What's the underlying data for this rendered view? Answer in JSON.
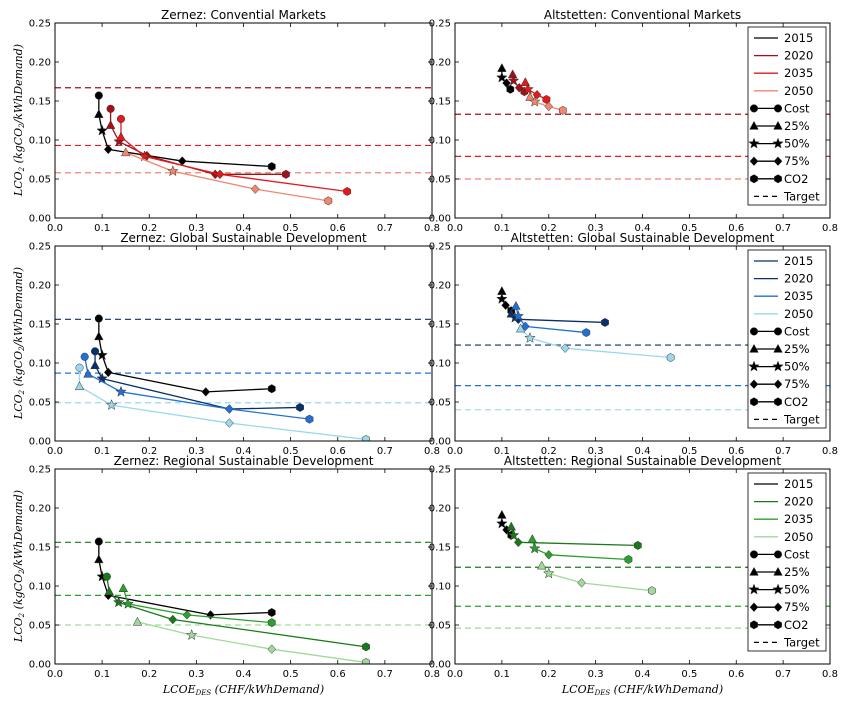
{
  "chart_data": [
    {
      "type": "line",
      "title": "Zernez: Convential Markets",
      "xlim": [
        0,
        0.8
      ],
      "ylim": [
        0,
        0.25
      ],
      "xticks": [
        "0.0",
        "0.1",
        "0.2",
        "0.3",
        "0.4",
        "0.5",
        "0.6",
        "0.7",
        "0.8"
      ],
      "yticks": [
        "0.00",
        "0.05",
        "0.10",
        "0.15",
        "0.20",
        "0.25"
      ],
      "legend": null,
      "series": [
        {
          "name": "2015",
          "color": "#000000",
          "points": [
            [
              0.093,
              0.157
            ],
            [
              0.093,
              0.133
            ],
            [
              0.1,
              0.112
            ],
            [
              0.113,
              0.088
            ],
            [
              0.27,
              0.073
            ],
            [
              0.46,
              0.066
            ]
          ]
        },
        {
          "name": "2020",
          "color": "#a50f15",
          "points": [
            [
              0.118,
              0.14
            ],
            [
              0.118,
              0.119
            ],
            [
              0.136,
              0.098
            ],
            [
              0.195,
              0.08
            ],
            [
              0.34,
              0.056
            ],
            [
              0.49,
              0.056
            ]
          ]
        },
        {
          "name": "2035",
          "color": "#e31a1c",
          "points": [
            [
              0.14,
              0.127
            ],
            [
              0.14,
              0.104
            ],
            [
              0.19,
              0.079
            ],
            [
              0.35,
              0.056
            ],
            [
              0.62,
              0.034
            ]
          ]
        },
        {
          "name": "2050",
          "color": "#f08870",
          "points": [
            [
              0.15,
              0.084
            ],
            [
              0.25,
              0.06
            ],
            [
              0.425,
              0.037
            ],
            [
              0.58,
              0.022
            ]
          ]
        }
      ],
      "targets": [
        {
          "y": 0.167,
          "color": "#a50f15"
        },
        {
          "y": 0.093,
          "color": "#e31a1c"
        },
        {
          "y": 0.058,
          "color": "#f08870"
        }
      ]
    },
    {
      "type": "line",
      "title": "Altstetten: Conventional Markets",
      "xlim": [
        0,
        0.8
      ],
      "ylim": [
        0,
        0.25
      ],
      "xticks": [
        "0.0",
        "0.1",
        "0.2",
        "0.3",
        "0.4",
        "0.5",
        "0.6",
        "0.7",
        "0.8"
      ],
      "yticks": [
        "0.00",
        "0.05",
        "0.10",
        "0.15",
        "0.20",
        "0.25"
      ],
      "legend": {
        "placement": "top-right",
        "entries": [
          "2015",
          "2020",
          "2035",
          "2050",
          "Cost",
          "25%",
          "50%",
          "75%",
          "CO2",
          "Target"
        ],
        "colors": [
          "#000000",
          "#a50f15",
          "#e31a1c",
          "#f08870"
        ]
      },
      "series": [
        {
          "name": "2015",
          "color": "#000000",
          "points": [
            [
              0.1,
              0.192
            ],
            [
              0.1,
              0.18
            ],
            [
              0.11,
              0.173
            ],
            [
              0.118,
              0.165
            ]
          ]
        },
        {
          "name": "2020",
          "color": "#a50f15",
          "points": [
            [
              0.123,
              0.184
            ],
            [
              0.125,
              0.176
            ],
            [
              0.137,
              0.167
            ],
            [
              0.148,
              0.162
            ]
          ]
        },
        {
          "name": "2035",
          "color": "#e31a1c",
          "points": [
            [
              0.15,
              0.174
            ],
            [
              0.156,
              0.165
            ],
            [
              0.175,
              0.158
            ],
            [
              0.195,
              0.152
            ]
          ]
        },
        {
          "name": "2050",
          "color": "#f08870",
          "points": [
            [
              0.16,
              0.155
            ],
            [
              0.17,
              0.149
            ],
            [
              0.2,
              0.143
            ],
            [
              0.23,
              0.138
            ]
          ]
        }
      ],
      "targets": [
        {
          "y": 0.133,
          "color": "#a50f15"
        },
        {
          "y": 0.079,
          "color": "#e31a1c"
        },
        {
          "y": 0.05,
          "color": "#f08870"
        }
      ]
    },
    {
      "type": "line",
      "title": "Zernez: Global Sustainable Development",
      "xlim": [
        0,
        0.8
      ],
      "ylim": [
        0,
        0.25
      ],
      "xticks": [
        "0.0",
        "0.1",
        "0.2",
        "0.3",
        "0.4",
        "0.5",
        "0.6",
        "0.7",
        "0.8"
      ],
      "yticks": [
        "0.00",
        "0.05",
        "0.10",
        "0.15",
        "0.20",
        "0.25"
      ],
      "legend": null,
      "series": [
        {
          "name": "2015",
          "color": "#000000",
          "points": [
            [
              0.093,
              0.157
            ],
            [
              0.093,
              0.134
            ],
            [
              0.1,
              0.11
            ],
            [
              0.113,
              0.088
            ],
            [
              0.32,
              0.063
            ],
            [
              0.46,
              0.067
            ]
          ]
        },
        {
          "name": "2020",
          "color": "#08306b",
          "points": [
            [
              0.085,
              0.115
            ],
            [
              0.085,
              0.097
            ],
            [
              0.1,
              0.08
            ],
            [
              0.37,
              0.041
            ],
            [
              0.52,
              0.043
            ]
          ]
        },
        {
          "name": "2035",
          "color": "#2171d5",
          "points": [
            [
              0.063,
              0.108
            ],
            [
              0.07,
              0.086
            ],
            [
              0.14,
              0.063
            ],
            [
              0.37,
              0.041
            ],
            [
              0.54,
              0.028
            ]
          ]
        },
        {
          "name": "2050",
          "color": "#9ad8ea",
          "points": [
            [
              0.052,
              0.094
            ],
            [
              0.052,
              0.07
            ],
            [
              0.12,
              0.046
            ],
            [
              0.37,
              0.023
            ],
            [
              0.66,
              0.002
            ]
          ]
        }
      ],
      "targets": [
        {
          "y": 0.156,
          "color": "#08306b"
        },
        {
          "y": 0.087,
          "color": "#2171d5"
        },
        {
          "y": 0.049,
          "color": "#9ad8ea"
        }
      ]
    },
    {
      "type": "line",
      "title": "Altstetten: Global Sustainable Development",
      "xlim": [
        0,
        0.8
      ],
      "ylim": [
        0,
        0.25
      ],
      "xticks": [
        "0.0",
        "0.1",
        "0.2",
        "0.3",
        "0.4",
        "0.5",
        "0.6",
        "0.7",
        "0.8"
      ],
      "yticks": [
        "0.00",
        "0.05",
        "0.10",
        "0.15",
        "0.20",
        "0.25"
      ],
      "legend": {
        "placement": "top-right",
        "entries": [
          "2015",
          "2020",
          "2035",
          "2050",
          "Cost",
          "25%",
          "50%",
          "75%",
          "CO2",
          "Target"
        ],
        "colors": [
          "#08306b",
          "#08306b",
          "#2171d5",
          "#9ad8ea"
        ]
      },
      "series": [
        {
          "name": "2015",
          "color": "#000000",
          "points": [
            [
              0.1,
              0.192
            ],
            [
              0.1,
              0.182
            ],
            [
              0.108,
              0.174
            ],
            [
              0.12,
              0.167
            ]
          ]
        },
        {
          "name": "2020",
          "color": "#08306b",
          "points": [
            [
              0.12,
              0.163
            ],
            [
              0.128,
              0.158
            ],
            [
              0.135,
              0.156
            ],
            [
              0.32,
              0.152
            ]
          ]
        },
        {
          "name": "2035",
          "color": "#2171d5",
          "points": [
            [
              0.13,
              0.173
            ],
            [
              0.135,
              0.16
            ],
            [
              0.15,
              0.147
            ],
            [
              0.28,
              0.139
            ]
          ]
        },
        {
          "name": "2050",
          "color": "#9ad8ea",
          "points": [
            [
              0.14,
              0.144
            ],
            [
              0.16,
              0.132
            ],
            [
              0.235,
              0.119
            ],
            [
              0.46,
              0.107
            ]
          ]
        }
      ],
      "targets": [
        {
          "y": 0.123,
          "color": "#08306b"
        },
        {
          "y": 0.071,
          "color": "#2171d5"
        },
        {
          "y": 0.04,
          "color": "#9ad8ea"
        }
      ]
    },
    {
      "type": "line",
      "title": "Zernez: Regional Sustainable Development",
      "xlim": [
        0,
        0.8
      ],
      "ylim": [
        0,
        0.25
      ],
      "xticks": [
        "0.0",
        "0.1",
        "0.2",
        "0.3",
        "0.4",
        "0.5",
        "0.6",
        "0.7",
        "0.8"
      ],
      "yticks": [
        "0.00",
        "0.05",
        "0.10",
        "0.15",
        "0.20",
        "0.25"
      ],
      "legend": null,
      "series": [
        {
          "name": "2015",
          "color": "#000000",
          "points": [
            [
              0.093,
              0.157
            ],
            [
              0.093,
              0.134
            ],
            [
              0.1,
              0.112
            ],
            [
              0.113,
              0.088
            ],
            [
              0.33,
              0.063
            ],
            [
              0.46,
              0.066
            ]
          ]
        },
        {
          "name": "2020",
          "color": "#1a7a1a",
          "points": [
            [
              0.11,
              0.112
            ],
            [
              0.115,
              0.093
            ],
            [
              0.135,
              0.079
            ],
            [
              0.25,
              0.057
            ],
            [
              0.66,
              0.022
            ]
          ]
        },
        {
          "name": "2035",
          "color": "#2ca02c",
          "points": [
            [
              0.145,
              0.097
            ],
            [
              0.155,
              0.077
            ],
            [
              0.28,
              0.063
            ],
            [
              0.46,
              0.053
            ]
          ]
        },
        {
          "name": "2050",
          "color": "#a1d99b",
          "points": [
            [
              0.175,
              0.054
            ],
            [
              0.29,
              0.037
            ],
            [
              0.46,
              0.019
            ],
            [
              0.66,
              0.002
            ]
          ]
        }
      ],
      "targets": [
        {
          "y": 0.156,
          "color": "#1a7a1a"
        },
        {
          "y": 0.088,
          "color": "#2ca02c"
        },
        {
          "y": 0.05,
          "color": "#a1d99b"
        }
      ]
    },
    {
      "type": "line",
      "title": "Altstetten: Regional Sustainable Development",
      "xlim": [
        0,
        0.8
      ],
      "ylim": [
        0,
        0.25
      ],
      "xticks": [
        "0.0",
        "0.1",
        "0.2",
        "0.3",
        "0.4",
        "0.5",
        "0.6",
        "0.7",
        "0.8"
      ],
      "yticks": [
        "0.00",
        "0.05",
        "0.10",
        "0.15",
        "0.20",
        "0.25"
      ],
      "legend": {
        "placement": "top-right",
        "entries": [
          "2015",
          "2020",
          "2035",
          "2050",
          "Cost",
          "25%",
          "50%",
          "75%",
          "CO2",
          "Target"
        ],
        "colors": [
          "#000000",
          "#1a7a1a",
          "#2ca02c",
          "#a1d99b"
        ]
      },
      "series": [
        {
          "name": "2015",
          "color": "#000000",
          "points": [
            [
              0.1,
              0.191
            ],
            [
              0.1,
              0.18
            ],
            [
              0.11,
              0.172
            ],
            [
              0.12,
              0.165
            ]
          ]
        },
        {
          "name": "2020",
          "color": "#1a7a1a",
          "points": [
            [
              0.12,
              0.176
            ],
            [
              0.125,
              0.165
            ],
            [
              0.135,
              0.156
            ],
            [
              0.39,
              0.152
            ]
          ]
        },
        {
          "name": "2035",
          "color": "#2ca02c",
          "points": [
            [
              0.165,
              0.16
            ],
            [
              0.17,
              0.148
            ],
            [
              0.2,
              0.14
            ],
            [
              0.37,
              0.134
            ]
          ]
        },
        {
          "name": "2050",
          "color": "#a1d99b",
          "points": [
            [
              0.185,
              0.126
            ],
            [
              0.2,
              0.116
            ],
            [
              0.27,
              0.104
            ],
            [
              0.42,
              0.094
            ]
          ]
        }
      ],
      "targets": [
        {
          "y": 0.124,
          "color": "#1a7a1a"
        },
        {
          "y": 0.074,
          "color": "#2ca02c"
        },
        {
          "y": 0.046,
          "color": "#a1d99b"
        }
      ]
    }
  ],
  "axes": {
    "ylabel_main": "LCO",
    "ylabel_sub1": "2",
    "ylabel_rest": " (kgCO",
    "ylabel_sub2": "2",
    "ylabel_end": "/kWhDemand)",
    "xlabel_main": "LCOE",
    "xlabel_sub": "DES",
    "xlabel_rest": " (CHF/kWhDemand)"
  }
}
